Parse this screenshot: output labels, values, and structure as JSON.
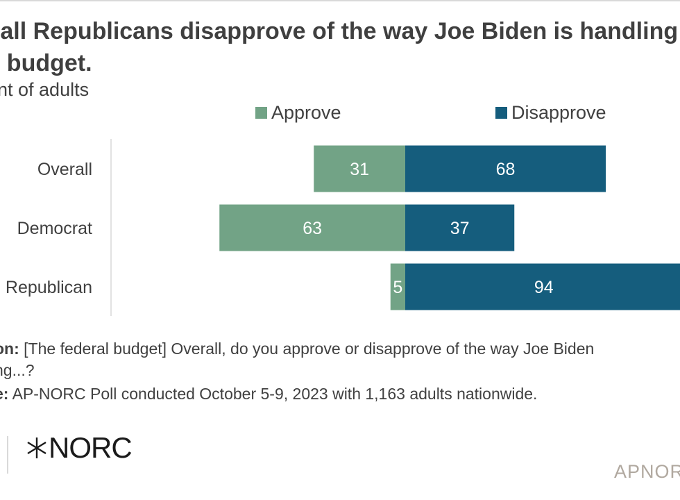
{
  "title_line1": "y all Republicans disapprove of the way Joe Biden is handling",
  "title_line2": "al budget.",
  "subtitle": "nt of adults",
  "legend": {
    "approve_label": "Approve",
    "disapprove_label": "Disapprove"
  },
  "colors": {
    "approve": "#72a386",
    "disapprove": "#155d7d"
  },
  "chart_data": {
    "type": "bar",
    "orientation": "horizontal-diverging",
    "categories": [
      "Overall",
      "Democrat",
      "Republican"
    ],
    "series": [
      {
        "name": "Approve",
        "values": [
          31,
          63,
          5
        ]
      },
      {
        "name": "Disapprove",
        "values": [
          68,
          37,
          94
        ]
      }
    ],
    "legend_position": "top"
  },
  "notes": {
    "question_label": "on:",
    "question_text": " [The federal budget] Overall, do you approve or disapprove of the way Joe Biden",
    "question_text2": "ng...?",
    "source_label": "e:",
    "source_text": " AP-NORC Poll conducted October 5-9, 2023 with 1,163 adults nationwide."
  },
  "logo": {
    "text": "NORC",
    "apnorc": "APNORC"
  }
}
